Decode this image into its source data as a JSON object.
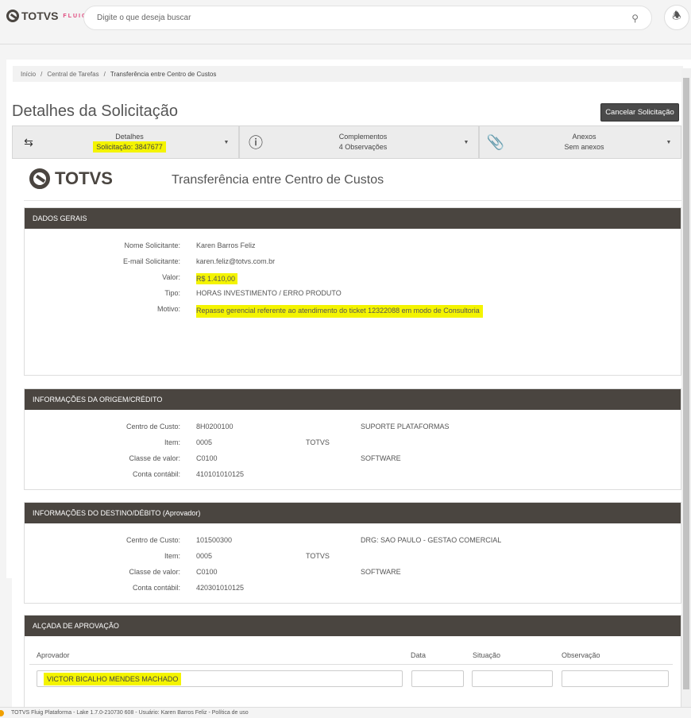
{
  "header": {
    "logo": "TOTVS",
    "logo_sub": "FLUIG",
    "search_placeholder": "Digite o que deseja buscar"
  },
  "breadcrumb": [
    "Início",
    "Central de Tarefas",
    "Transferência entre Centro de Custos"
  ],
  "page_title": "Detalhes da Solicitação",
  "cancel_label": "Cancelar Solicitação",
  "tabs": [
    {
      "title": "Detalhes",
      "sub": "Solicitação: 3847677",
      "icon": "transfer-icon"
    },
    {
      "title": "Complementos",
      "sub": "4 Observações",
      "icon": "info-icon"
    },
    {
      "title": "Anexos",
      "sub": "Sem anexos",
      "icon": "paperclip-icon"
    }
  ],
  "form": {
    "logo": "TOTVS",
    "title": "Transferência entre Centro de Custos",
    "general": {
      "header": "DADOS GERAIS",
      "rows": [
        {
          "label": "Nome Solicitante:",
          "value": "Karen Barros Feliz"
        },
        {
          "label": "E-mail Solicitante:",
          "value": "karen.feliz@totvs.com.br"
        },
        {
          "label": "Valor:",
          "value": "R$ 1.410,00"
        },
        {
          "label": "Tipo:",
          "value": "HORAS INVESTIMENTO / ERRO PRODUTO"
        },
        {
          "label": "Motivo:",
          "value": "Repasse gerencial referente ao atendimento do ticket 12322088 em modo de Consultoria"
        }
      ]
    },
    "origin": {
      "header": "INFORMAÇÕES DA ORIGEM/CRÉDITO",
      "rows": [
        {
          "label": "Centro de Custo:",
          "value": "8H0200100",
          "c3": "",
          "c4": "SUPORTE PLATAFORMAS"
        },
        {
          "label": "Item:",
          "value": "0005",
          "c3": "TOTVS",
          "c4": ""
        },
        {
          "label": "Classe de valor:",
          "value": "C0100",
          "c3": "",
          "c4": "SOFTWARE"
        },
        {
          "label": "Conta contábil:",
          "value": "410101010125",
          "c3": "",
          "c4": ""
        }
      ]
    },
    "dest": {
      "header": "INFORMAÇÕES DO DESTINO/DÉBITO (Aprovador)",
      "rows": [
        {
          "label": "Centro de Custo:",
          "value": "101500300",
          "c3": "",
          "c4": "DRG: SAO PAULO - GESTAO COMERCIAL"
        },
        {
          "label": "Item:",
          "value": "0005",
          "c3": "TOTVS",
          "c4": ""
        },
        {
          "label": "Classe de valor:",
          "value": "C0100",
          "c3": "",
          "c4": "SOFTWARE"
        },
        {
          "label": "Conta contábil:",
          "value": "420301010125",
          "c3": "",
          "c4": ""
        }
      ]
    },
    "approval": {
      "header": "ALÇADA DE APROVAÇÃO",
      "columns": [
        "Aprovador",
        "Data",
        "Situação",
        "Observação"
      ],
      "approver": "VICTOR BICALHO MENDES MACHADO",
      "date": "",
      "status": "",
      "note": ""
    }
  },
  "footer": "TOTVS Fluig Plataforma - Lake 1.7.0-210730 608 - Usuário: Karen Barros Feliz - Política de uso",
  "colors": {
    "section_header": "#4a4540",
    "highlight": "#f4f400",
    "brand_pink": "#e0457b"
  }
}
